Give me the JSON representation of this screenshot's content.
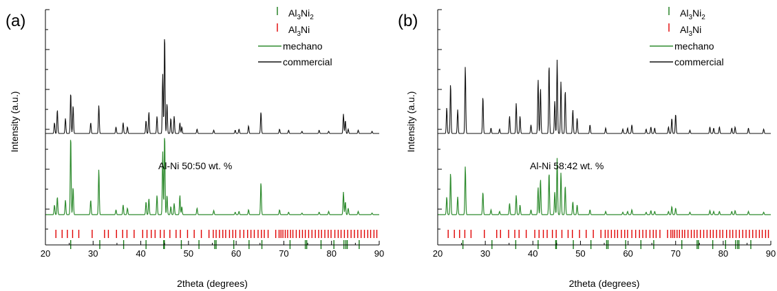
{
  "colors": {
    "mechano": "#2e8b2e",
    "commercial": "#111111",
    "Al3Ni2": "#1a7a1a",
    "Al3Ni": "#e00000",
    "axis": "#000000"
  },
  "chart_data": [
    {
      "type": "line",
      "panel_label": "(a)",
      "xlabel": "2theta (degrees)",
      "ylabel": "Intensity (a.u.)",
      "xlim": [
        20,
        90
      ],
      "x_ticks": [
        20,
        30,
        40,
        50,
        60,
        70,
        80,
        90
      ],
      "annotation": "Al-Ni 50:50 wt. %",
      "legend": {
        "placement": "top-right",
        "entries": [
          {
            "id": "Al3Ni2",
            "base": "Al",
            "sub1": "3",
            "mid": "Ni",
            "sub2": "2",
            "marker": "tick"
          },
          {
            "id": "Al3Ni",
            "base": "Al",
            "sub1": "3",
            "mid": "Ni",
            "sub2": "",
            "marker": "tick"
          },
          {
            "id": "mechano",
            "label": "mechano",
            "marker": "line"
          },
          {
            "id": "commercial",
            "label": "commercial",
            "marker": "line"
          }
        ]
      },
      "series": [
        {
          "name": "commercial",
          "peaks": [
            [
              21.9,
              0.1
            ],
            [
              22.5,
              0.22
            ],
            [
              24.2,
              0.14
            ],
            [
              25.3,
              0.38
            ],
            [
              25.8,
              0.26
            ],
            [
              29.5,
              0.1
            ],
            [
              31.2,
              0.26
            ],
            [
              34.8,
              0.06
            ],
            [
              36.3,
              0.1
            ],
            [
              37.2,
              0.06
            ],
            [
              41.1,
              0.12
            ],
            [
              41.7,
              0.2
            ],
            [
              43.4,
              0.16
            ],
            [
              44.6,
              0.55
            ],
            [
              45.0,
              0.92
            ],
            [
              45.5,
              0.28
            ],
            [
              46.3,
              0.14
            ],
            [
              47.0,
              0.16
            ],
            [
              48.2,
              0.1
            ],
            [
              48.6,
              0.06
            ],
            [
              51.8,
              0.04
            ],
            [
              55.3,
              0.03
            ],
            [
              59.8,
              0.03
            ],
            [
              60.6,
              0.04
            ],
            [
              62.6,
              0.07
            ],
            [
              65.2,
              0.2
            ],
            [
              69.1,
              0.04
            ],
            [
              71.0,
              0.03
            ],
            [
              73.8,
              0.02
            ],
            [
              77.4,
              0.03
            ],
            [
              79.4,
              0.02
            ],
            [
              82.5,
              0.18
            ],
            [
              82.9,
              0.12
            ],
            [
              83.5,
              0.04
            ],
            [
              85.6,
              0.03
            ],
            [
              88.5,
              0.02
            ]
          ]
        },
        {
          "name": "mechano",
          "peaks": [
            [
              21.9,
              0.12
            ],
            [
              22.5,
              0.22
            ],
            [
              24.2,
              0.18
            ],
            [
              25.3,
              0.98
            ],
            [
              25.8,
              0.34
            ],
            [
              29.5,
              0.18
            ],
            [
              31.2,
              0.56
            ],
            [
              34.8,
              0.06
            ],
            [
              36.3,
              0.12
            ],
            [
              37.2,
              0.08
            ],
            [
              41.1,
              0.16
            ],
            [
              41.7,
              0.2
            ],
            [
              43.4,
              0.24
            ],
            [
              44.6,
              0.78
            ],
            [
              45.0,
              1.0
            ],
            [
              45.5,
              0.24
            ],
            [
              46.3,
              0.1
            ],
            [
              47.0,
              0.14
            ],
            [
              48.2,
              0.24
            ],
            [
              48.6,
              0.1
            ],
            [
              51.8,
              0.08
            ],
            [
              55.3,
              0.05
            ],
            [
              59.8,
              0.03
            ],
            [
              60.6,
              0.04
            ],
            [
              62.6,
              0.06
            ],
            [
              65.2,
              0.4
            ],
            [
              69.1,
              0.06
            ],
            [
              71.0,
              0.03
            ],
            [
              73.8,
              0.02
            ],
            [
              77.4,
              0.03
            ],
            [
              79.4,
              0.04
            ],
            [
              82.5,
              0.28
            ],
            [
              82.9,
              0.16
            ],
            [
              83.5,
              0.08
            ],
            [
              85.6,
              0.04
            ],
            [
              88.5,
              0.02
            ]
          ]
        }
      ],
      "reference_ticks": {
        "Al3Ni": [
          22.2,
          23.5,
          24.6,
          25.7,
          27.0,
          29.8,
          32.4,
          33.2,
          34.9,
          36.2,
          37.1,
          38.6,
          40.4,
          41.3,
          42.2,
          43.0,
          44.1,
          44.9,
          46.1,
          47.4,
          48.3,
          49.8,
          51.2,
          52.7,
          54.3,
          55.2,
          55.8,
          56.5,
          57.2,
          57.8,
          58.6,
          59.3,
          59.9,
          60.8,
          61.6,
          62.4,
          63.1,
          63.8,
          64.6,
          65.3,
          65.9,
          66.7,
          68.3,
          69.0,
          69.4,
          69.8,
          70.3,
          70.8,
          71.4,
          71.9,
          72.6,
          73.3,
          73.9,
          74.5,
          75.2,
          75.9,
          76.6,
          77.3,
          77.9,
          78.6,
          79.3,
          79.9,
          80.7,
          81.4,
          82.0,
          82.7,
          83.4,
          84.1,
          84.8,
          85.5,
          86.2,
          86.9,
          87.6,
          88.2,
          88.9,
          89.5
        ],
        "Al3Ni2": [
          25.3,
          31.4,
          36.4,
          41.1,
          44.8,
          44.95,
          48.5,
          52.2,
          55.5,
          55.8,
          59.5,
          62.7,
          65.4,
          71.3,
          74.5,
          74.8,
          77.8,
          80.5,
          82.6,
          83.0,
          83.3,
          85.8
        ]
      }
    },
    {
      "type": "line",
      "panel_label": "(b)",
      "xlabel": "2theta (degrees)",
      "ylabel": "Intensity (a.u.)",
      "xlim": [
        20,
        90
      ],
      "x_ticks": [
        20,
        30,
        40,
        50,
        60,
        70,
        80,
        90
      ],
      "annotation": "Al-Ni 58:42 wt. %",
      "legend": {
        "placement": "top-right",
        "entries": [
          {
            "id": "Al3Ni2",
            "base": "Al",
            "sub1": "3",
            "mid": "Ni",
            "sub2": "2",
            "marker": "tick"
          },
          {
            "id": "Al3Ni",
            "base": "Al",
            "sub1": "3",
            "mid": "Ni",
            "sub2": "",
            "marker": "tick"
          },
          {
            "id": "mechano",
            "label": "mechano",
            "marker": "line"
          },
          {
            "id": "commercial",
            "label": "commercial",
            "marker": "line"
          }
        ]
      },
      "series": [
        {
          "name": "commercial",
          "peaks": [
            [
              21.9,
              0.24
            ],
            [
              22.7,
              0.46
            ],
            [
              24.2,
              0.22
            ],
            [
              25.8,
              0.62
            ],
            [
              29.5,
              0.34
            ],
            [
              31.2,
              0.05
            ],
            [
              33.0,
              0.04
            ],
            [
              35.1,
              0.16
            ],
            [
              36.5,
              0.28
            ],
            [
              37.3,
              0.16
            ],
            [
              39.6,
              0.08
            ],
            [
              41.1,
              0.5
            ],
            [
              41.6,
              0.42
            ],
            [
              43.4,
              0.64
            ],
            [
              44.6,
              0.3
            ],
            [
              45.1,
              0.68
            ],
            [
              45.9,
              0.48
            ],
            [
              46.8,
              0.4
            ],
            [
              48.4,
              0.22
            ],
            [
              49.3,
              0.14
            ],
            [
              52.0,
              0.08
            ],
            [
              55.3,
              0.05
            ],
            [
              58.9,
              0.04
            ],
            [
              59.9,
              0.05
            ],
            [
              60.8,
              0.08
            ],
            [
              63.8,
              0.04
            ],
            [
              64.8,
              0.06
            ],
            [
              65.6,
              0.05
            ],
            [
              68.5,
              0.06
            ],
            [
              69.2,
              0.14
            ],
            [
              70.0,
              0.18
            ],
            [
              73.0,
              0.03
            ],
            [
              77.2,
              0.06
            ],
            [
              78.0,
              0.05
            ],
            [
              79.2,
              0.06
            ],
            [
              81.8,
              0.05
            ],
            [
              82.5,
              0.06
            ],
            [
              85.3,
              0.05
            ],
            [
              88.5,
              0.04
            ]
          ]
        },
        {
          "name": "mechano",
          "peaks": [
            [
              21.9,
              0.22
            ],
            [
              22.7,
              0.52
            ],
            [
              24.2,
              0.22
            ],
            [
              25.8,
              0.6
            ],
            [
              29.5,
              0.28
            ],
            [
              31.2,
              0.06
            ],
            [
              33.0,
              0.04
            ],
            [
              35.1,
              0.14
            ],
            [
              36.5,
              0.24
            ],
            [
              37.3,
              0.12
            ],
            [
              39.6,
              0.06
            ],
            [
              41.1,
              0.34
            ],
            [
              41.6,
              0.44
            ],
            [
              43.4,
              0.52
            ],
            [
              44.6,
              0.28
            ],
            [
              45.1,
              0.7
            ],
            [
              45.9,
              0.52
            ],
            [
              46.8,
              0.36
            ],
            [
              48.4,
              0.16
            ],
            [
              49.3,
              0.12
            ],
            [
              52.0,
              0.06
            ],
            [
              55.3,
              0.04
            ],
            [
              58.9,
              0.03
            ],
            [
              59.9,
              0.04
            ],
            [
              60.8,
              0.06
            ],
            [
              63.8,
              0.03
            ],
            [
              64.8,
              0.05
            ],
            [
              65.6,
              0.04
            ],
            [
              68.5,
              0.04
            ],
            [
              69.2,
              0.1
            ],
            [
              70.0,
              0.08
            ],
            [
              73.0,
              0.03
            ],
            [
              77.2,
              0.05
            ],
            [
              78.0,
              0.04
            ],
            [
              79.2,
              0.04
            ],
            [
              81.8,
              0.04
            ],
            [
              82.5,
              0.05
            ],
            [
              85.3,
              0.04
            ],
            [
              88.5,
              0.03
            ]
          ]
        }
      ],
      "reference_ticks": {
        "Al3Ni": [
          22.2,
          23.5,
          24.6,
          25.7,
          27.0,
          29.8,
          32.4,
          33.2,
          34.9,
          36.2,
          37.1,
          38.6,
          40.4,
          41.3,
          42.2,
          43.0,
          44.1,
          44.9,
          46.1,
          47.4,
          48.3,
          49.8,
          51.2,
          52.7,
          54.3,
          55.2,
          55.8,
          56.5,
          57.2,
          57.8,
          58.6,
          59.3,
          59.9,
          60.8,
          61.6,
          62.4,
          63.1,
          63.8,
          64.6,
          65.3,
          65.9,
          66.7,
          68.3,
          69.0,
          69.4,
          69.8,
          70.3,
          70.8,
          71.4,
          71.9,
          72.6,
          73.3,
          73.9,
          74.5,
          75.2,
          75.9,
          76.6,
          77.3,
          77.9,
          78.6,
          79.3,
          79.9,
          80.7,
          81.4,
          82.0,
          82.7,
          83.4,
          84.1,
          84.8,
          85.5,
          86.2,
          86.9,
          87.6,
          88.2,
          88.9,
          89.5
        ],
        "Al3Ni2": [
          25.3,
          31.4,
          36.4,
          41.1,
          44.8,
          44.95,
          48.5,
          52.2,
          55.5,
          55.8,
          59.5,
          62.7,
          65.4,
          71.3,
          74.5,
          74.8,
          77.8,
          80.5,
          82.6,
          83.0,
          83.3,
          85.8
        ]
      }
    }
  ]
}
